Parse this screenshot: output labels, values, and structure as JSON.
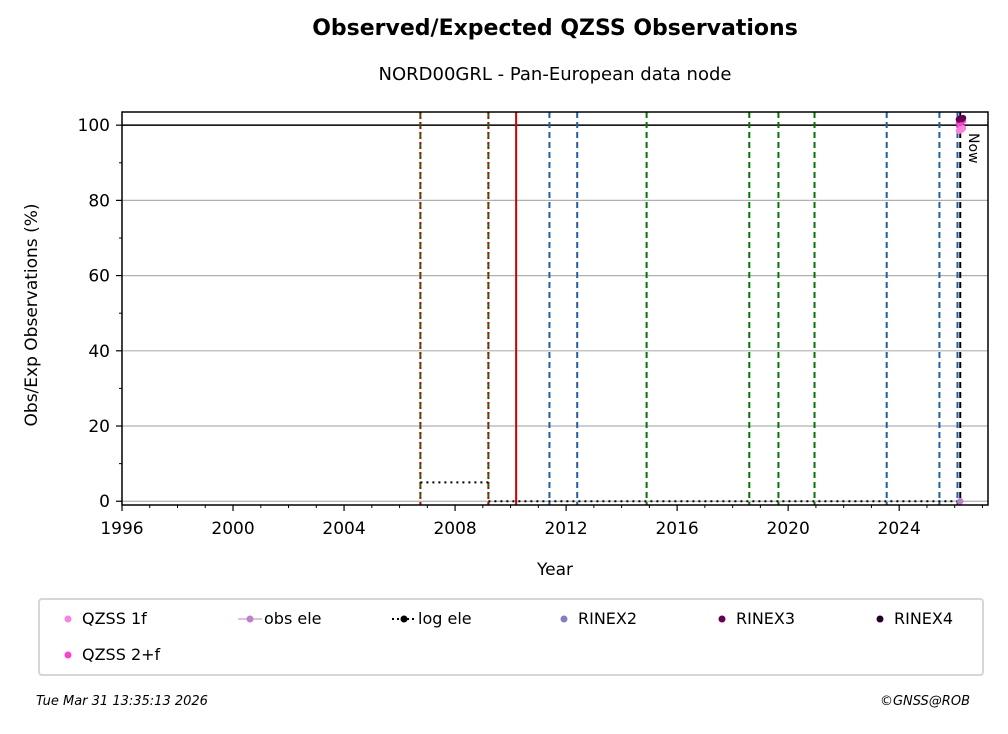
{
  "chart_data": {
    "type": "scatter",
    "title": "Observed/Expected QZSS Observations",
    "subtitle": "NORD00GRL - Pan-European data node",
    "xlabel": "Year",
    "ylabel": "Obs/Exp Observations (%)",
    "xlim": [
      1996,
      2027.2
    ],
    "ylim": [
      -1,
      103.5
    ],
    "xticks": [
      "1996",
      "2000",
      "2004",
      "2008",
      "2012",
      "2016",
      "2020",
      "2024"
    ],
    "yticks": [
      "0",
      "20",
      "40",
      "60",
      "80",
      "100"
    ],
    "grid": "horizontal",
    "reference_line_y": 100,
    "now_label": "Now",
    "now_x": 2026.25,
    "vlines": [
      {
        "x": 2006.75,
        "style": "dashed",
        "color": "#007700"
      },
      {
        "x": 2006.75,
        "style": "dotted",
        "color": "#cc0000"
      },
      {
        "x": 2009.2,
        "style": "dashed",
        "color": "#007700"
      },
      {
        "x": 2009.2,
        "style": "dotted",
        "color": "#cc0000"
      },
      {
        "x": 2010.2,
        "style": "solid",
        "color": "#cc0000"
      },
      {
        "x": 2011.4,
        "style": "dashed",
        "color": "#1f5fa8"
      },
      {
        "x": 2012.4,
        "style": "dashed",
        "color": "#1f5fa8"
      },
      {
        "x": 2014.9,
        "style": "dashed",
        "color": "#007700"
      },
      {
        "x": 2018.6,
        "style": "dashed",
        "color": "#007700"
      },
      {
        "x": 2019.65,
        "style": "dashed",
        "color": "#007700"
      },
      {
        "x": 2020.95,
        "style": "dashed",
        "color": "#007700"
      },
      {
        "x": 2023.55,
        "style": "dashed",
        "color": "#1f5fa8"
      },
      {
        "x": 2025.45,
        "style": "dashed",
        "color": "#1f5fa8"
      },
      {
        "x": 2026.1,
        "style": "dashed",
        "color": "#1f5fa8"
      },
      {
        "x": 2026.2,
        "style": "dashed",
        "color": "#000000"
      }
    ],
    "log_ele_segments": [
      {
        "x": [
          2006.75,
          2009.2
        ],
        "y": 5
      },
      {
        "x": [
          2009.2,
          2026.2
        ],
        "y": 0
      }
    ],
    "series": [
      {
        "name": "QZSS 1f",
        "color": "#ff80df",
        "x": [
          2026.15,
          2026.2,
          2026.25,
          2026.3
        ],
        "y": [
          98.5,
          99.0,
          98.8,
          99.2
        ]
      },
      {
        "name": "QZSS 2+f",
        "color": "#ff40d0",
        "x": [
          2026.15,
          2026.2,
          2026.25,
          2026.3
        ],
        "y": [
          100.5,
          101.0,
          100.8,
          101.2
        ]
      },
      {
        "name": "obs ele",
        "color": "#c080d0",
        "x": [
          2026.2
        ],
        "y": [
          0
        ]
      },
      {
        "name": "log ele",
        "color": "#000000",
        "x": [],
        "y": []
      },
      {
        "name": "RINEX2",
        "color": "#8080c0",
        "x": [],
        "y": []
      },
      {
        "name": "RINEX3",
        "color": "#660050",
        "x": [
          2026.15,
          2026.2,
          2026.25,
          2026.3
        ],
        "y": [
          101.5,
          101.8,
          101.6,
          101.9
        ]
      },
      {
        "name": "RINEX4",
        "color": "#200020",
        "x": [],
        "y": []
      }
    ]
  },
  "legend": {
    "items": [
      {
        "label": "QZSS 1f",
        "icon": "dot",
        "color": "#ff80df"
      },
      {
        "label": "obs ele",
        "icon": "line-dot",
        "color": "#c080d0"
      },
      {
        "label": "log ele",
        "icon": "dotted-line-dot",
        "color": "#000000"
      },
      {
        "label": "RINEX2",
        "icon": "dot",
        "color": "#8080c0"
      },
      {
        "label": "RINEX3",
        "icon": "dot",
        "color": "#660050"
      },
      {
        "label": "RINEX4",
        "icon": "dot",
        "color": "#200020"
      },
      {
        "label": "QZSS 2+f",
        "icon": "dot",
        "color": "#ff40d0"
      }
    ]
  },
  "footer": {
    "date": "Tue Mar 31 13:35:13 2026",
    "credit": "©GNSS@ROB"
  }
}
